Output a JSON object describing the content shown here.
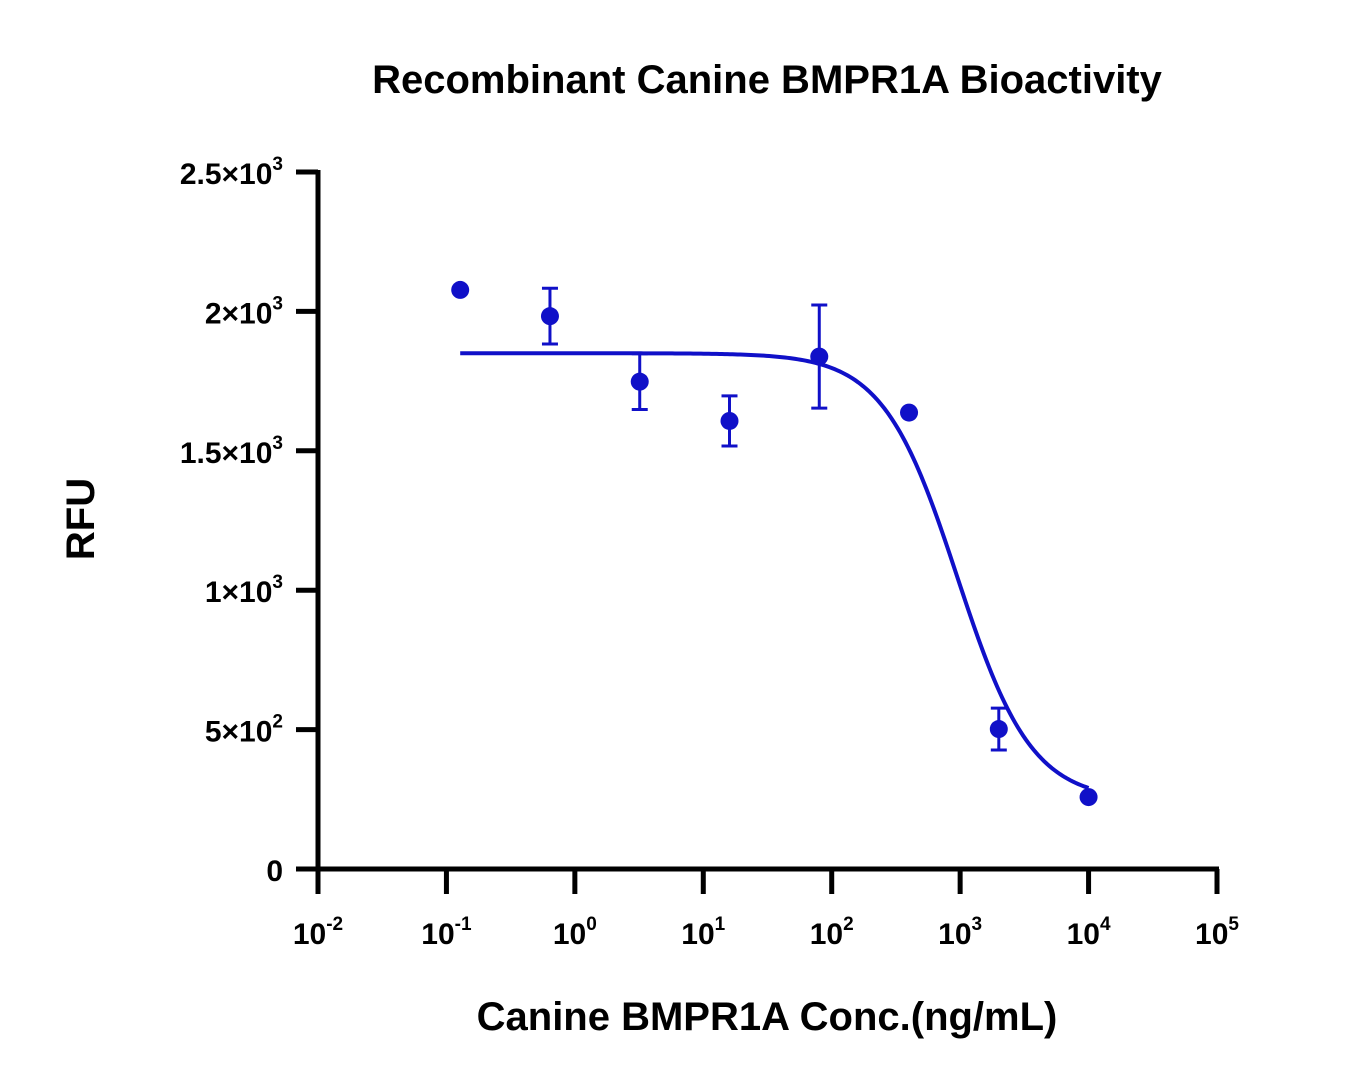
{
  "chart_data": {
    "type": "scatter",
    "title": "Recombinant Canine BMPR1A Bioactivity",
    "xlabel": "Canine BMPR1A Conc.(ng/mL)",
    "ylabel": "RFU",
    "x_scale": "log",
    "xlim": [
      0.01,
      100000
    ],
    "ylim": [
      0,
      2500
    ],
    "x_ticks": [
      {
        "base": "10",
        "exp": "-2"
      },
      {
        "base": "10",
        "exp": "-1"
      },
      {
        "base": "10",
        "exp": "0"
      },
      {
        "base": "10",
        "exp": "1"
      },
      {
        "base": "10",
        "exp": "2"
      },
      {
        "base": "10",
        "exp": "3"
      },
      {
        "base": "10",
        "exp": "4"
      },
      {
        "base": "10",
        "exp": "5"
      }
    ],
    "y_ticks": [
      {
        "value": 0,
        "mant": "0",
        "exp": ""
      },
      {
        "value": 500,
        "mant": "5×10",
        "exp": "2"
      },
      {
        "value": 1000,
        "mant": "1×10",
        "exp": "3"
      },
      {
        "value": 1500,
        "mant": "1.5×10",
        "exp": "3"
      },
      {
        "value": 2000,
        "mant": "2×10",
        "exp": "3"
      },
      {
        "value": 2500,
        "mant": "2.5×10",
        "exp": "3"
      }
    ],
    "series": [
      {
        "color": "#1010c8",
        "points": [
          {
            "x": 0.128,
            "y": 2077,
            "err": 0
          },
          {
            "x": 0.64,
            "y": 1983,
            "err": 100
          },
          {
            "x": 3.2,
            "y": 1748,
            "err": 100
          },
          {
            "x": 16,
            "y": 1607,
            "err": 90
          },
          {
            "x": 80,
            "y": 1838,
            "err": 185
          },
          {
            "x": 400,
            "y": 1637,
            "err": 0
          },
          {
            "x": 2000,
            "y": 502,
            "err": 75
          },
          {
            "x": 10000,
            "y": 258,
            "err": 0
          }
        ],
        "fit": {
          "bottom": 245,
          "top": 1850,
          "ec50": 950,
          "hill": 1.5,
          "x_range": [
            0.128,
            10000
          ]
        }
      }
    ],
    "grid": false,
    "legend": "none"
  }
}
